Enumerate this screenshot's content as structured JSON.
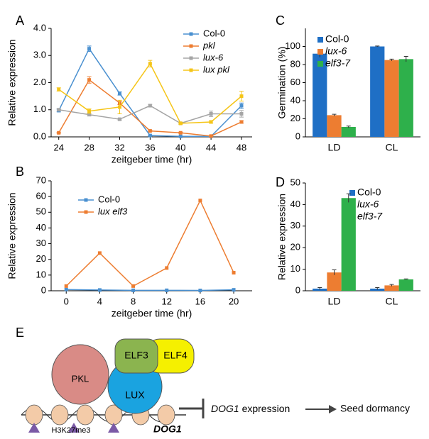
{
  "chart_data": [
    {
      "panel": "A",
      "type": "line",
      "x": [
        24,
        28,
        32,
        36,
        40,
        44,
        48
      ],
      "xlim": [
        23,
        49.4
      ],
      "xticks": [
        24,
        28,
        32,
        36,
        40,
        44,
        48
      ],
      "ylim": [
        0,
        4
      ],
      "yticks": [
        {
          "value": 0,
          "label": "0.0"
        },
        {
          "value": 1,
          "label": "1.0"
        },
        {
          "value": 2,
          "label": "2.0"
        },
        {
          "value": 3,
          "label": "3.0"
        },
        {
          "value": 4,
          "label": "4.0"
        }
      ],
      "x_label": "zeitgeber time (hr)",
      "y_label": "Relative expression",
      "series": [
        {
          "name": "Col-0",
          "color": "#4a90d0",
          "italic": false,
          "values": [
            0.97,
            3.25,
            1.6,
            0.05,
            0.02,
            0.02,
            1.15
          ],
          "errors": [
            0.05,
            0.1,
            0.06,
            0.02,
            0.01,
            0.01,
            0.1
          ]
        },
        {
          "name": "pkl",
          "color": "#ed7d31",
          "italic": true,
          "values": [
            0.15,
            2.1,
            1.25,
            0.22,
            0.15,
            0.03,
            0.55
          ],
          "errors": [
            0.02,
            0.12,
            0.06,
            0.02,
            0.02,
            0.01,
            0.04
          ]
        },
        {
          "name": "lux-6",
          "color": "#a5a5a5",
          "italic": true,
          "values": [
            1.0,
            0.82,
            0.65,
            1.15,
            0.5,
            0.85,
            0.85
          ],
          "errors": [
            0.04,
            0.05,
            0.03,
            0.05,
            0.03,
            0.1,
            0.12
          ]
        },
        {
          "name": "lux pkl",
          "color": "#f5c518",
          "italic": true,
          "values": [
            1.75,
            0.95,
            1.1,
            2.7,
            0.5,
            0.55,
            1.5
          ],
          "errors": [
            0.06,
            0.08,
            0.25,
            0.12,
            0.03,
            0.04,
            0.18
          ]
        }
      ]
    },
    {
      "panel": "B",
      "type": "line",
      "x": [
        0,
        4,
        8,
        12,
        16,
        20
      ],
      "xlim": [
        -1.8,
        22.2
      ],
      "xticks": [
        0,
        4,
        8,
        12,
        16,
        20
      ],
      "ylim": [
        0,
        70
      ],
      "yticks": [
        0,
        10,
        20,
        30,
        40,
        50,
        60,
        70
      ],
      "x_label": "zeitgeber time (hr)",
      "y_label": "Relative expression",
      "series": [
        {
          "name": "Col-0",
          "color": "#4a90d0",
          "italic": false,
          "values": [
            0.8,
            0.5,
            0.3,
            0.3,
            0.2,
            0.6
          ]
        },
        {
          "name": "lux elf3",
          "color": "#ed7d31",
          "italic": true,
          "values": [
            3,
            24,
            3,
            14.5,
            57.5,
            11.5
          ]
        }
      ]
    },
    {
      "panel": "C",
      "type": "bar",
      "categories": [
        "LD",
        "CL"
      ],
      "ylim": [
        0,
        120
      ],
      "yticks": [
        0,
        20,
        40,
        60,
        80,
        100
      ],
      "y_label": "Germination (%)",
      "series": [
        {
          "name": "Col-0",
          "color": "#1f6fc5",
          "italic": false,
          "values": [
            92,
            100
          ],
          "errors": [
            4,
            0.5
          ]
        },
        {
          "name": "lux-6",
          "color": "#ed7d31",
          "italic": true,
          "values": [
            24,
            85
          ],
          "errors": [
            1,
            1
          ]
        },
        {
          "name": "elf3-7",
          "color": "#2eb04b",
          "italic": true,
          "values": [
            11,
            86
          ],
          "errors": [
            1,
            3
          ]
        }
      ]
    },
    {
      "panel": "D",
      "type": "bar",
      "categories": [
        "LD",
        "CL"
      ],
      "ylim": [
        0,
        50
      ],
      "yticks": [
        0,
        10,
        20,
        30,
        40,
        50
      ],
      "y_label": "Relative expression",
      "series": [
        {
          "name": "Col-0",
          "color": "#1f6fc5",
          "italic": false,
          "values": [
            1,
            1
          ],
          "errors": [
            0.5,
            0.5
          ]
        },
        {
          "name": "lux-6",
          "color": "#ed7d31",
          "italic": true,
          "values": [
            8.5,
            2.5
          ],
          "errors": [
            1.2,
            0.4
          ]
        },
        {
          "name": "elf3-7",
          "color": "#2eb04b",
          "italic": true,
          "values": [
            43,
            5.3
          ],
          "errors": [
            2,
            0.2
          ]
        }
      ]
    }
  ],
  "diagram": {
    "panel": "E",
    "elf3": "ELF3",
    "elf4": "ELF4",
    "pkl": "PKL",
    "lux": "LUX",
    "mark": "H3K27me3",
    "gene": "DOG1",
    "expression_gene": "DOG1",
    "expression_label": " expression",
    "outcome": "Seed dormancy"
  }
}
